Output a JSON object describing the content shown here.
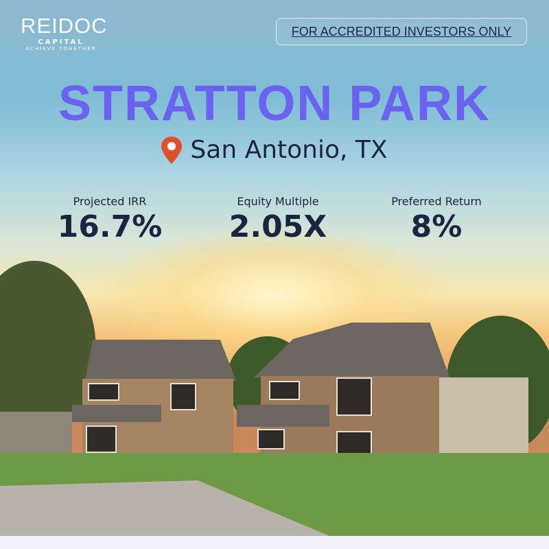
{
  "brand": {
    "name": "REIDOC",
    "sub": "CAPITAL",
    "tagline": "ACHIEVE TOGETHER"
  },
  "badge": "FOR ACCREDITED INVESTORS ONLY",
  "title": "STRATTON PARK",
  "location": {
    "icon": "map-pin-icon",
    "text": "San Antonio, TX"
  },
  "stats": [
    {
      "label": "Projected IRR",
      "value": "16.7%"
    },
    {
      "label": "Equity Multiple",
      "value": "2.05X"
    },
    {
      "label": "Preferred Return",
      "value": "8%"
    }
  ],
  "colors": {
    "title": "#6b63f0",
    "text": "#1c2540",
    "pin": "#e0502a"
  }
}
